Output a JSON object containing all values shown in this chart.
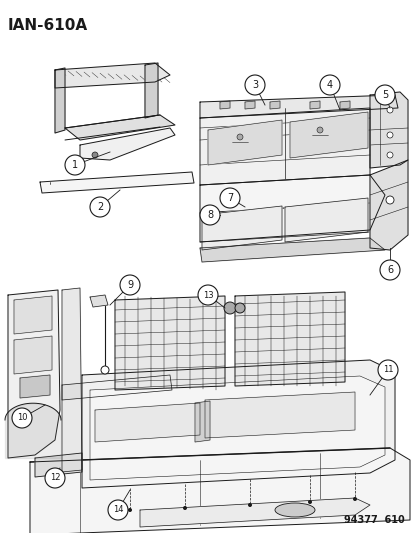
{
  "title": "IAN–610A",
  "footer": "94377  610",
  "bg_color": "#ffffff",
  "fg_color": "#1a1a1a",
  "fig_width": 4.14,
  "fig_height": 5.33,
  "dpi": 100
}
